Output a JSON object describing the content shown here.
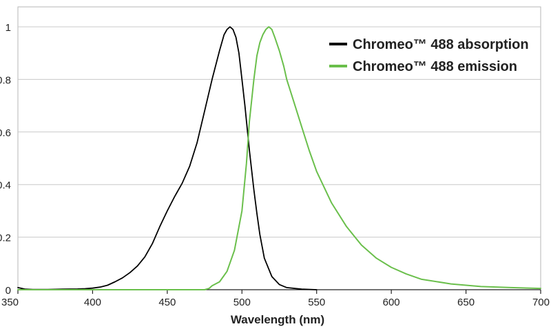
{
  "chart_data": {
    "type": "line",
    "title": "",
    "xlabel": "Wavelength (nm)",
    "ylabel": "",
    "xlim": [
      350,
      700
    ],
    "ylim": [
      0,
      1
    ],
    "x_ticks": [
      350,
      400,
      450,
      500,
      550,
      600,
      650,
      700
    ],
    "y_ticks": [
      0,
      0.2,
      0.4,
      0.6,
      0.8,
      1
    ],
    "y_tick_labels": [
      "0",
      "0.2",
      "0.4",
      "0.6",
      "0.8",
      "1"
    ],
    "grid": "horizontal",
    "legend_position": "top-right",
    "series": [
      {
        "name": "Chromeo™ 488 absorption",
        "color": "#000000",
        "x": [
          350,
          355,
          360,
          370,
          380,
          390,
          395,
          400,
          405,
          410,
          415,
          420,
          425,
          430,
          435,
          440,
          445,
          450,
          455,
          460,
          465,
          470,
          475,
          480,
          485,
          488,
          490,
          492,
          494,
          496,
          498,
          500,
          502,
          505,
          508,
          510,
          512,
          515,
          520,
          525,
          530,
          540,
          550
        ],
        "y": [
          0.008,
          0.002,
          0.001,
          0.001,
          0.002,
          0.003,
          0.004,
          0.006,
          0.01,
          0.017,
          0.03,
          0.045,
          0.065,
          0.09,
          0.125,
          0.175,
          0.24,
          0.3,
          0.355,
          0.405,
          0.47,
          0.56,
          0.68,
          0.8,
          0.91,
          0.97,
          0.99,
          1.0,
          0.99,
          0.96,
          0.9,
          0.8,
          0.7,
          0.53,
          0.38,
          0.29,
          0.21,
          0.12,
          0.05,
          0.02,
          0.008,
          0.002,
          0.0
        ]
      },
      {
        "name": "Chromeo™ 488 emission",
        "color": "#6abf4b",
        "x": [
          350,
          400,
          450,
          475,
          478,
          480,
          485,
          490,
          495,
          500,
          503,
          505,
          508,
          510,
          512,
          514,
          516,
          518,
          520,
          522,
          525,
          528,
          530,
          535,
          540,
          545,
          550,
          560,
          570,
          580,
          590,
          600,
          610,
          620,
          640,
          660,
          680,
          700
        ],
        "y": [
          0.0,
          0.0,
          0.0,
          0.0,
          0.005,
          0.015,
          0.03,
          0.07,
          0.15,
          0.3,
          0.48,
          0.64,
          0.8,
          0.89,
          0.94,
          0.97,
          0.99,
          1.0,
          0.99,
          0.96,
          0.91,
          0.85,
          0.8,
          0.71,
          0.62,
          0.53,
          0.45,
          0.33,
          0.24,
          0.17,
          0.12,
          0.085,
          0.06,
          0.04,
          0.022,
          0.012,
          0.008,
          0.005
        ]
      }
    ]
  }
}
